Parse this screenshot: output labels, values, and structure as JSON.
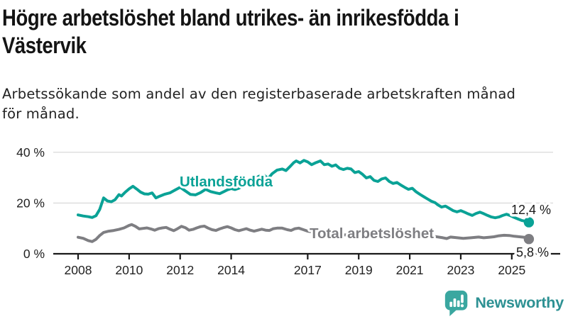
{
  "header": {
    "title": "Högre arbetslöshet bland utrikes- än inrikesfödda i Västervik",
    "title_lines": [
      "Högre arbetslöshet bland utrikes- än inrikesfödda i",
      "Västervik"
    ],
    "subtitle": "Arbetssökande som andel av den registerbaserade arbetskraften månad för månad.",
    "subtitle_lines": [
      "Arbetssökande som andel av den registerbaserade arbetskraften månad",
      "för månad."
    ]
  },
  "chart_data": {
    "type": "line",
    "unit": "%",
    "x_axis": {
      "ticks": [
        2008,
        2010,
        2012,
        2014,
        2017,
        2019,
        2021,
        2023,
        2025
      ],
      "range": [
        2008,
        2025.7
      ]
    },
    "y_axis": {
      "ticks": [
        {
          "value": 0,
          "label": "0 %"
        },
        {
          "value": 20,
          "label": "20 %"
        },
        {
          "value": 40,
          "label": "40 %"
        }
      ],
      "range": [
        0,
        40
      ],
      "grid": true
    },
    "colors": {
      "axis": "#1a1a1a",
      "grid": "#dcdcdc",
      "tick_text": "#222222",
      "end_label_text": "#1a1a1a"
    },
    "series": [
      {
        "name": "Utlandsfödda",
        "color": "#0aa296",
        "end_label": "12,4 %",
        "end_value": 12.4,
        "points": [
          [
            2008.0,
            15.3
          ],
          [
            2008.2,
            14.9
          ],
          [
            2008.4,
            14.6
          ],
          [
            2008.55,
            14.3
          ],
          [
            2008.7,
            15.0
          ],
          [
            2008.85,
            17.5
          ],
          [
            2009.0,
            22.0
          ],
          [
            2009.15,
            20.8
          ],
          [
            2009.3,
            20.5
          ],
          [
            2009.45,
            21.3
          ],
          [
            2009.6,
            23.3
          ],
          [
            2009.7,
            22.8
          ],
          [
            2009.85,
            24.3
          ],
          [
            2010.0,
            25.6
          ],
          [
            2010.15,
            26.6
          ],
          [
            2010.3,
            25.5
          ],
          [
            2010.45,
            24.3
          ],
          [
            2010.6,
            23.6
          ],
          [
            2010.75,
            23.5
          ],
          [
            2010.9,
            24.0
          ],
          [
            2011.05,
            22.0
          ],
          [
            2011.2,
            22.7
          ],
          [
            2011.4,
            23.5
          ],
          [
            2011.6,
            24.0
          ],
          [
            2011.8,
            25.1
          ],
          [
            2012.0,
            26.2
          ],
          [
            2012.2,
            24.8
          ],
          [
            2012.4,
            23.4
          ],
          [
            2012.6,
            23.2
          ],
          [
            2012.8,
            24.1
          ],
          [
            2013.0,
            25.4
          ],
          [
            2013.2,
            24.5
          ],
          [
            2013.4,
            24.0
          ],
          [
            2013.55,
            23.7
          ],
          [
            2013.7,
            24.4
          ],
          [
            2013.85,
            25.2
          ],
          [
            2014.0,
            25.7
          ],
          [
            2014.15,
            25.3
          ],
          [
            2014.3,
            25.8
          ],
          [
            2014.5,
            27.0
          ],
          [
            2014.7,
            28.2
          ],
          [
            2014.9,
            29.5
          ],
          [
            2015.1,
            30.6
          ],
          [
            2015.3,
            30.9
          ],
          [
            2015.45,
            29.6
          ],
          [
            2015.6,
            31.5
          ],
          [
            2015.8,
            33.0
          ],
          [
            2016.0,
            33.4
          ],
          [
            2016.15,
            32.8
          ],
          [
            2016.3,
            34.3
          ],
          [
            2016.45,
            35.9
          ],
          [
            2016.55,
            36.6
          ],
          [
            2016.7,
            35.8
          ],
          [
            2016.85,
            36.8
          ],
          [
            2017.0,
            36.2
          ],
          [
            2017.15,
            35.1
          ],
          [
            2017.3,
            35.8
          ],
          [
            2017.5,
            36.6
          ],
          [
            2017.65,
            35.1
          ],
          [
            2017.8,
            35.4
          ],
          [
            2017.95,
            34.5
          ],
          [
            2018.1,
            35.0
          ],
          [
            2018.25,
            33.7
          ],
          [
            2018.4,
            33.2
          ],
          [
            2018.55,
            33.7
          ],
          [
            2018.7,
            33.4
          ],
          [
            2018.85,
            32.0
          ],
          [
            2019.0,
            32.4
          ],
          [
            2019.15,
            31.3
          ],
          [
            2019.3,
            29.9
          ],
          [
            2019.45,
            30.4
          ],
          [
            2019.6,
            28.9
          ],
          [
            2019.75,
            28.5
          ],
          [
            2019.9,
            29.5
          ],
          [
            2020.05,
            29.9
          ],
          [
            2020.2,
            28.5
          ],
          [
            2020.35,
            27.7
          ],
          [
            2020.5,
            28.1
          ],
          [
            2020.65,
            27.1
          ],
          [
            2020.8,
            26.2
          ],
          [
            2020.95,
            25.4
          ],
          [
            2021.1,
            25.8
          ],
          [
            2021.25,
            24.4
          ],
          [
            2021.4,
            23.4
          ],
          [
            2021.55,
            22.5
          ],
          [
            2021.7,
            21.6
          ],
          [
            2021.85,
            20.7
          ],
          [
            2022.0,
            20.1
          ],
          [
            2022.1,
            19.3
          ],
          [
            2022.25,
            18.4
          ],
          [
            2022.4,
            18.8
          ],
          [
            2022.55,
            17.9
          ],
          [
            2022.7,
            17.0
          ],
          [
            2022.85,
            16.5
          ],
          [
            2023.0,
            17.0
          ],
          [
            2023.15,
            16.4
          ],
          [
            2023.3,
            15.7
          ],
          [
            2023.45,
            15.1
          ],
          [
            2023.6,
            15.9
          ],
          [
            2023.75,
            16.4
          ],
          [
            2023.9,
            15.8
          ],
          [
            2024.05,
            15.1
          ],
          [
            2024.2,
            14.5
          ],
          [
            2024.35,
            14.2
          ],
          [
            2024.5,
            14.5
          ],
          [
            2024.65,
            15.1
          ],
          [
            2024.8,
            15.6
          ],
          [
            2024.95,
            15.0
          ],
          [
            2025.1,
            14.3
          ],
          [
            2025.25,
            13.7
          ],
          [
            2025.4,
            13.1
          ],
          [
            2025.55,
            12.8
          ],
          [
            2025.67,
            12.4
          ]
        ]
      },
      {
        "name": "Total arbetslöshet",
        "color": "#7e7e82",
        "end_label": "5,8 %",
        "end_value": 5.8,
        "points": [
          [
            2008.0,
            6.5
          ],
          [
            2008.2,
            6.1
          ],
          [
            2008.4,
            5.2
          ],
          [
            2008.55,
            4.8
          ],
          [
            2008.7,
            5.7
          ],
          [
            2008.85,
            7.2
          ],
          [
            2009.0,
            8.4
          ],
          [
            2009.2,
            8.9
          ],
          [
            2009.4,
            9.2
          ],
          [
            2009.6,
            9.6
          ],
          [
            2009.8,
            10.2
          ],
          [
            2010.0,
            11.2
          ],
          [
            2010.1,
            11.5
          ],
          [
            2010.25,
            10.8
          ],
          [
            2010.4,
            9.8
          ],
          [
            2010.55,
            10.0
          ],
          [
            2010.7,
            10.2
          ],
          [
            2010.85,
            9.8
          ],
          [
            2011.0,
            9.3
          ],
          [
            2011.15,
            9.9
          ],
          [
            2011.3,
            10.2
          ],
          [
            2011.45,
            10.4
          ],
          [
            2011.6,
            9.7
          ],
          [
            2011.75,
            9.1
          ],
          [
            2011.9,
            9.9
          ],
          [
            2012.05,
            10.8
          ],
          [
            2012.2,
            10.3
          ],
          [
            2012.35,
            9.3
          ],
          [
            2012.5,
            9.6
          ],
          [
            2012.65,
            10.2
          ],
          [
            2012.8,
            10.7
          ],
          [
            2012.95,
            10.9
          ],
          [
            2013.1,
            10.1
          ],
          [
            2013.25,
            9.5
          ],
          [
            2013.4,
            9.2
          ],
          [
            2013.55,
            9.8
          ],
          [
            2013.7,
            10.3
          ],
          [
            2013.85,
            10.7
          ],
          [
            2014.0,
            10.2
          ],
          [
            2014.15,
            9.5
          ],
          [
            2014.3,
            9.1
          ],
          [
            2014.45,
            9.5
          ],
          [
            2014.6,
            9.9
          ],
          [
            2014.75,
            9.3
          ],
          [
            2014.9,
            8.9
          ],
          [
            2015.05,
            9.3
          ],
          [
            2015.2,
            9.7
          ],
          [
            2015.35,
            9.3
          ],
          [
            2015.5,
            9.2
          ],
          [
            2015.65,
            9.9
          ],
          [
            2015.8,
            10.1
          ],
          [
            2016.0,
            10.1
          ],
          [
            2016.2,
            9.5
          ],
          [
            2016.35,
            9.2
          ],
          [
            2016.5,
            9.9
          ],
          [
            2016.65,
            10.1
          ],
          [
            2016.8,
            9.6
          ],
          [
            2017.0,
            8.9
          ],
          [
            2017.3,
            8.5
          ],
          [
            2017.6,
            8.2
          ],
          [
            2018.0,
            7.8
          ],
          [
            2018.4,
            7.5
          ],
          [
            2018.8,
            7.3
          ],
          [
            2019.2,
            7.1
          ],
          [
            2019.6,
            7.0
          ],
          [
            2020.0,
            7.4
          ],
          [
            2020.3,
            8.6
          ],
          [
            2020.5,
            8.9
          ],
          [
            2020.8,
            8.6
          ],
          [
            2021.0,
            8.3
          ],
          [
            2021.3,
            7.8
          ],
          [
            2021.6,
            7.3
          ],
          [
            2022.0,
            6.8
          ],
          [
            2022.3,
            6.3
          ],
          [
            2022.45,
            6.0
          ],
          [
            2022.6,
            6.6
          ],
          [
            2022.8,
            6.4
          ],
          [
            2023.1,
            6.1
          ],
          [
            2023.4,
            6.3
          ],
          [
            2023.7,
            6.6
          ],
          [
            2023.9,
            6.3
          ],
          [
            2024.1,
            6.5
          ],
          [
            2024.3,
            6.7
          ],
          [
            2024.5,
            7.1
          ],
          [
            2024.7,
            7.3
          ],
          [
            2024.9,
            7.2
          ],
          [
            2025.1,
            6.9
          ],
          [
            2025.3,
            6.7
          ],
          [
            2025.5,
            6.5
          ],
          [
            2025.67,
            5.8
          ]
        ]
      }
    ]
  },
  "footer": {
    "brand": "Newsworthy",
    "brand_color": "#2d9193",
    "logo_color": "#3aa7a0"
  }
}
